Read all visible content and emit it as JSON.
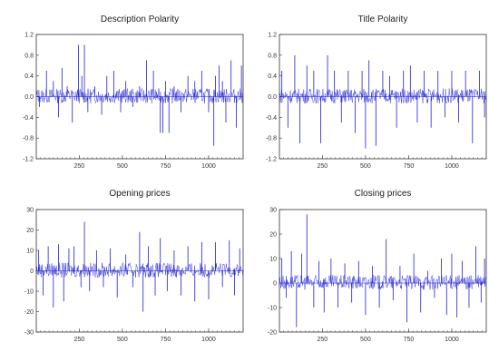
{
  "chart_data": [
    {
      "type": "line",
      "title": "Description Polarity",
      "xlim": [
        1,
        1200
      ],
      "ylim": [
        -1.2,
        1.2
      ],
      "yticks": [
        1.2,
        0.8,
        0.4,
        0.0,
        -0.4,
        -0.8,
        -1.2
      ],
      "ytick_labels": [
        "1.2",
        "0.8",
        "0.4",
        "0.0",
        "-0.4",
        "-0.8",
        "-1.2"
      ],
      "xticks": [
        250,
        500,
        750,
        1000
      ],
      "xtick_labels": [
        "250",
        "500",
        "750",
        "1000"
      ],
      "color": "#1f1fd6",
      "series": [
        {
          "x": [
            20,
            60,
            100,
            130,
            150,
            180,
            210,
            245,
            265,
            280,
            300,
            340,
            380,
            410,
            450,
            490,
            520,
            560,
            600,
            640,
            680,
            720,
            735,
            750,
            770,
            800,
            840,
            880,
            920,
            960,
            1000,
            1030,
            1040,
            1060,
            1080,
            1100,
            1130,
            1160,
            1190
          ],
          "y": [
            -0.2,
            0.5,
            0.3,
            -0.4,
            0.55,
            0.2,
            -0.5,
            1.0,
            0.4,
            1.0,
            -0.3,
            0.2,
            -0.35,
            0.4,
            0.5,
            -0.3,
            0.3,
            -0.2,
            0.2,
            0.7,
            0.5,
            -0.7,
            -0.7,
            0.3,
            -0.7,
            0.2,
            -0.3,
            0.4,
            0.3,
            0.5,
            -0.3,
            -0.95,
            0.4,
            0.6,
            0.3,
            -0.5,
            0.7,
            -0.6,
            0.6
          ]
        }
      ]
    },
    {
      "type": "line",
      "title": "Title Polarity",
      "xlim": [
        1,
        1200
      ],
      "ylim": [
        -1.2,
        1.2
      ],
      "yticks": [
        1.2,
        0.8,
        0.4,
        0.0,
        -0.4,
        -0.8,
        -1.2
      ],
      "ytick_labels": [
        "1.2",
        "0.8",
        "0.4",
        "0.0",
        "-0.4",
        "-0.8",
        "-1.2"
      ],
      "xticks": [
        250,
        500,
        750,
        1000
      ],
      "xtick_labels": [
        "250",
        "500",
        "750",
        "1000"
      ],
      "color": "#1f1fd6",
      "series": [
        {
          "x": [
            15,
            50,
            90,
            120,
            160,
            200,
            240,
            280,
            320,
            360,
            400,
            440,
            480,
            500,
            520,
            560,
            600,
            640,
            680,
            720,
            760,
            800,
            840,
            880,
            920,
            960,
            1000,
            1040,
            1080,
            1120,
            1160,
            1190
          ],
          "y": [
            0.5,
            -0.6,
            0.8,
            -0.9,
            0.6,
            0.5,
            -0.9,
            0.8,
            0.5,
            -0.5,
            0.5,
            -0.7,
            0.5,
            -1.0,
            0.7,
            -0.95,
            0.5,
            0.4,
            -0.6,
            0.5,
            0.6,
            -0.5,
            0.5,
            -0.6,
            0.5,
            -0.4,
            0.5,
            -0.5,
            0.5,
            -0.9,
            0.5,
            -0.4
          ]
        }
      ]
    },
    {
      "type": "line",
      "title": "Opening prices",
      "xlim": [
        1,
        1200
      ],
      "ylim": [
        -30,
        30
      ],
      "yticks": [
        30,
        20,
        10,
        0,
        -10,
        -20,
        -30
      ],
      "ytick_labels": [
        "30",
        "20",
        "10",
        "0",
        "-10",
        "-20",
        "-30"
      ],
      "xticks": [
        250,
        500,
        750,
        1000
      ],
      "xtick_labels": [
        "250",
        "500",
        "750",
        "1000"
      ],
      "color": "#1f1fd6",
      "series": [
        {
          "x": [
            15,
            40,
            70,
            100,
            130,
            160,
            190,
            220,
            260,
            280,
            310,
            350,
            390,
            430,
            470,
            520,
            560,
            600,
            620,
            650,
            690,
            720,
            760,
            800,
            840,
            880,
            920,
            960,
            1000,
            1040,
            1080,
            1120,
            1150,
            1180
          ],
          "y": [
            10,
            -12,
            12,
            -18,
            13,
            -15,
            11,
            12,
            -8,
            24,
            -10,
            10,
            -8,
            11,
            -13,
            8,
            -8,
            19,
            -20,
            12,
            -12,
            16,
            -10,
            10,
            -12,
            12,
            -15,
            14,
            -14,
            14,
            -8,
            15,
            -12,
            11
          ]
        }
      ]
    },
    {
      "type": "line",
      "title": "Closing prices",
      "xlim": [
        1,
        1200
      ],
      "ylim": [
        -20,
        30
      ],
      "yticks": [
        30,
        20,
        10,
        0,
        -10,
        -20
      ],
      "ytick_labels": [
        "30",
        "20",
        "10",
        "0",
        "-10",
        "-20"
      ],
      "xticks": [
        250,
        500,
        750,
        1000
      ],
      "xtick_labels": [
        "250",
        "500",
        "750",
        "1000"
      ],
      "color": "#1f1fd6",
      "series": [
        {
          "x": [
            15,
            40,
            70,
            100,
            130,
            160,
            200,
            230,
            260,
            300,
            340,
            380,
            420,
            460,
            500,
            540,
            580,
            620,
            660,
            700,
            740,
            780,
            820,
            860,
            900,
            940,
            970,
            1000,
            1030,
            1060,
            1100,
            1140,
            1170,
            1190
          ],
          "y": [
            10,
            -6,
            13,
            -18,
            12,
            28,
            -10,
            9,
            -12,
            10,
            -10,
            8,
            -8,
            9,
            -13,
            7,
            -10,
            18,
            -7,
            7,
            -16,
            12,
            -12,
            5,
            -6,
            10,
            -13,
            12,
            -14,
            9,
            -10,
            15,
            -8,
            10
          ]
        }
      ]
    }
  ]
}
